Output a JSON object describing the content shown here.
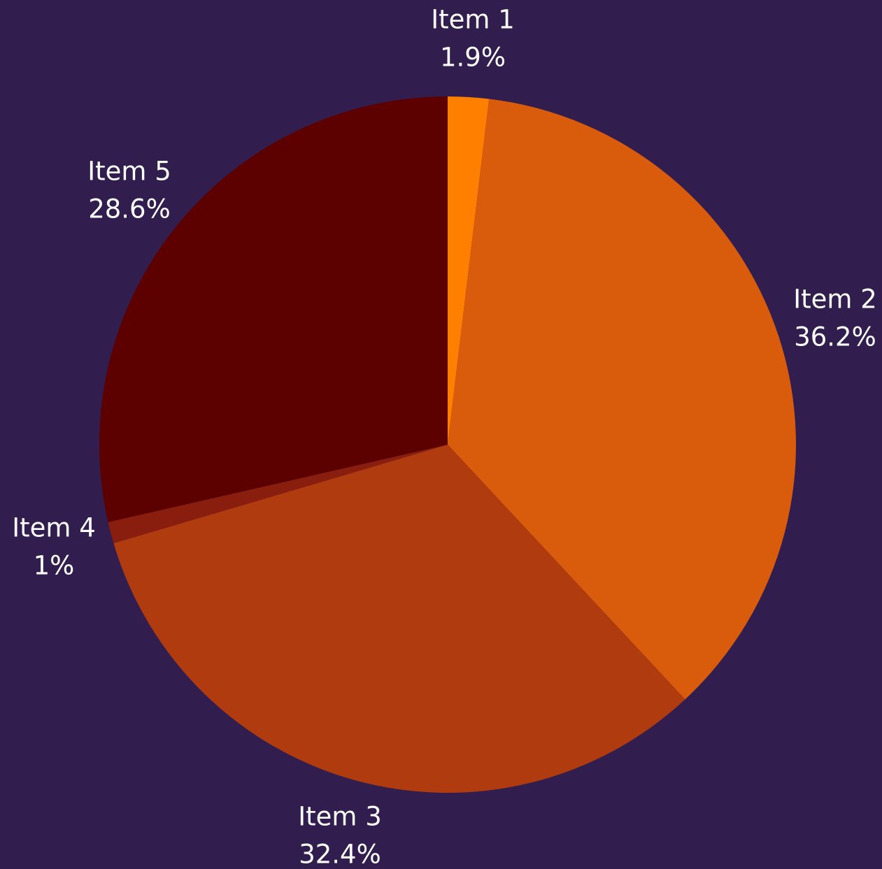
{
  "colors": {
    "background": "#311e4f"
  },
  "chart_data": {
    "type": "pie",
    "title": "",
    "start_angle_deg": 0,
    "direction": "clockwise",
    "slices": [
      {
        "label": "Item 1",
        "value": 1.9,
        "display": "1.9%",
        "color": "#ff7f00"
      },
      {
        "label": "Item 2",
        "value": 36.2,
        "display": "36.2%",
        "color": "#d95c0c"
      },
      {
        "label": "Item 3",
        "value": 32.4,
        "display": "32.4%",
        "color": "#b03b0e"
      },
      {
        "label": "Item 4",
        "value": 1.0,
        "display": "1%",
        "color": "#8a1e0e"
      },
      {
        "label": "Item 5",
        "value": 28.6,
        "display": "28.6%",
        "color": "#5c0000"
      }
    ]
  }
}
